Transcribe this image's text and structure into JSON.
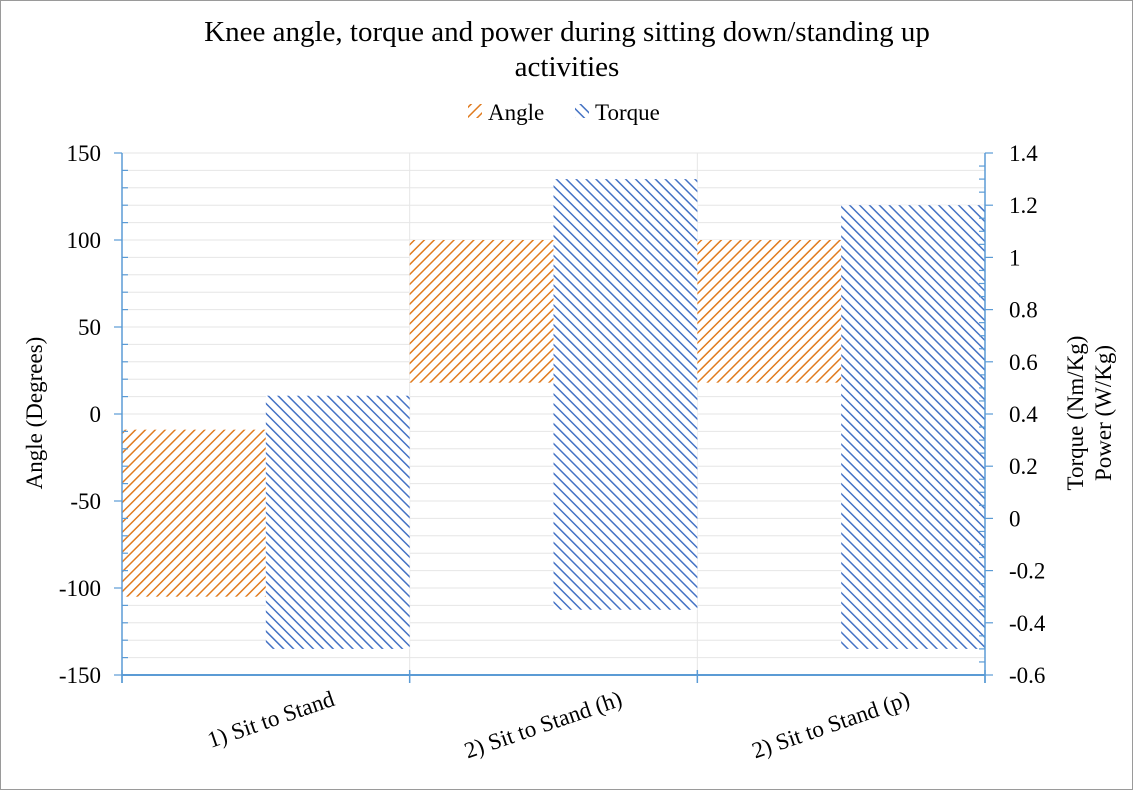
{
  "chart_data": {
    "type": "bar",
    "subtype": "floating-range",
    "title": "Knee angle, torque and power during  sitting down/standing up activities",
    "title_lines": [
      "Knee angle, torque and power during  sitting down/standing up",
      "activities"
    ],
    "categories": [
      "1) Sit to Stand",
      "2) Sit to Stand (h)",
      "2) Sit to Stand (p)"
    ],
    "series": [
      {
        "name": "Angle",
        "axis": "left",
        "color": "#E07B1F",
        "pattern": "hatch-forward",
        "ranges": [
          [
            -105,
            -9
          ],
          [
            18,
            100
          ],
          [
            18,
            100
          ]
        ]
      },
      {
        "name": "Torque",
        "axis": "right",
        "color": "#4472C4",
        "pattern": "hatch-back",
        "ranges": [
          [
            -0.5,
            0.47
          ],
          [
            -0.35,
            1.3
          ],
          [
            -0.5,
            1.2
          ]
        ]
      }
    ],
    "ylabel": "Angle (Degrees)",
    "y2label_lines": [
      "Torque (Nm/Kg)",
      "Power (W/Kg)"
    ],
    "ylim": [
      -150,
      150
    ],
    "y2lim": [
      -0.6,
      1.4
    ],
    "yticks": [
      "150",
      "100",
      "50",
      "0",
      "-50",
      "-100",
      "-150"
    ],
    "y2ticks": [
      "1.4",
      "1.2",
      "1",
      "0.8",
      "0.6",
      "0.4",
      "0.2",
      "0",
      "-0.2",
      "-0.4",
      "-0.6"
    ],
    "legend": "top",
    "grid": true
  }
}
